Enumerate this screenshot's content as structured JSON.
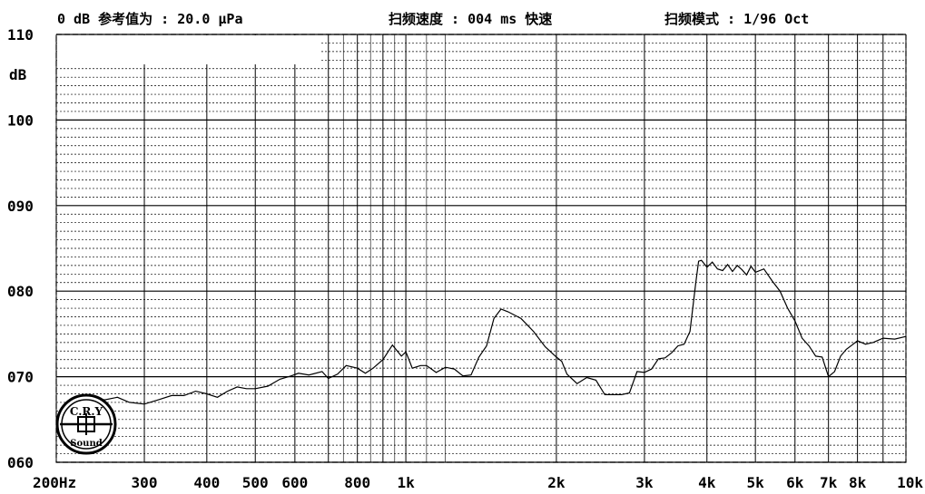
{
  "header": {
    "reference": "0 dB 参考值为 : 20.0 μPa",
    "sweep_speed": "扫频速度 : 004 ms 快速",
    "sweep_mode": "扫频模式 : 1/96  Oct"
  },
  "logo": {
    "text_top": "C.R.Y",
    "text_bottom": "Sound"
  },
  "chart_data": {
    "type": "line",
    "xscale": "log",
    "xlim": [
      200,
      10000
    ],
    "ylim": [
      60,
      110
    ],
    "ylabel": "dB",
    "yticks": [
      {
        "value": 110,
        "label": "110"
      },
      {
        "value": 100,
        "label": "100"
      },
      {
        "value": 90,
        "label": "090"
      },
      {
        "value": 80,
        "label": "080"
      },
      {
        "value": 70,
        "label": "070"
      },
      {
        "value": 60,
        "label": "060"
      }
    ],
    "xticks": [
      {
        "value": 200,
        "label": "200Hz"
      },
      {
        "value": 300,
        "label": "300"
      },
      {
        "value": 400,
        "label": "400"
      },
      {
        "value": 500,
        "label": "500"
      },
      {
        "value": 600,
        "label": "600"
      },
      {
        "value": 800,
        "label": "800"
      },
      {
        "value": 1000,
        "label": "1k"
      },
      {
        "value": 2000,
        "label": "2k"
      },
      {
        "value": 3000,
        "label": "3k"
      },
      {
        "value": 4000,
        "label": "4k"
      },
      {
        "value": 5000,
        "label": "5k"
      },
      {
        "value": 6000,
        "label": "6k"
      },
      {
        "value": 7000,
        "label": "7k"
      },
      {
        "value": 8000,
        "label": "8k"
      },
      {
        "value": 10000,
        "label": "10k"
      }
    ],
    "series": [
      {
        "x": [
          235,
          250,
          265,
          280,
          300,
          320,
          340,
          360,
          380,
          400,
          420,
          440,
          460,
          480,
          500,
          530,
          560,
          590,
          610,
          640,
          680,
          700,
          730,
          760,
          800,
          830,
          860,
          900,
          940,
          980,
          1000,
          1030,
          1070,
          1100,
          1150,
          1200,
          1250,
          1300,
          1350,
          1400,
          1450,
          1500,
          1550,
          1600,
          1700,
          1800,
          1900,
          2000,
          2050,
          2100,
          2200,
          2300,
          2400,
          2500,
          2600,
          2700,
          2800,
          2900,
          3000,
          3100,
          3200,
          3300,
          3400,
          3500,
          3600,
          3700,
          3800,
          3850,
          3900,
          3950,
          4000,
          4100,
          4200,
          4300,
          4400,
          4500,
          4600,
          4700,
          4800,
          4900,
          5000,
          5200,
          5400,
          5600,
          5800,
          6000,
          6200,
          6400,
          6600,
          6800,
          7000,
          7200,
          7400,
          7600,
          7800,
          8000,
          8300,
          8600,
          9000,
          9500,
          10000
        ],
        "y": [
          67.5,
          67.3,
          67.6,
          67.0,
          66.8,
          67.3,
          67.8,
          67.8,
          68.3,
          68.0,
          67.6,
          68.3,
          68.8,
          68.6,
          68.6,
          68.9,
          69.7,
          70.1,
          70.4,
          70.2,
          70.6,
          69.8,
          70.3,
          71.3,
          71.0,
          70.4,
          71.0,
          72.0,
          73.7,
          72.4,
          72.9,
          71.0,
          71.3,
          71.3,
          70.5,
          71.1,
          70.9,
          70.1,
          70.2,
          72.3,
          73.6,
          76.8,
          77.9,
          77.6,
          76.8,
          75.3,
          73.5,
          72.3,
          71.8,
          70.3,
          69.2,
          69.9,
          69.6,
          67.9,
          67.9,
          67.9,
          68.1,
          70.6,
          70.5,
          70.9,
          72.1,
          72.2,
          72.8,
          73.6,
          73.8,
          75.3,
          81.0,
          83.5,
          83.6,
          83.2,
          82.8,
          83.4,
          82.6,
          82.4,
          83.1,
          82.3,
          83.0,
          82.5,
          81.9,
          82.9,
          82.2,
          82.6,
          81.2,
          80.0,
          78.0,
          76.5,
          74.5,
          73.6,
          72.4,
          72.3,
          70.0,
          70.6,
          72.4,
          73.2,
          73.7,
          74.2,
          73.8,
          74.0,
          74.5,
          74.4,
          74.7
        ]
      }
    ],
    "grid": true,
    "minor_grid": "dashed"
  }
}
